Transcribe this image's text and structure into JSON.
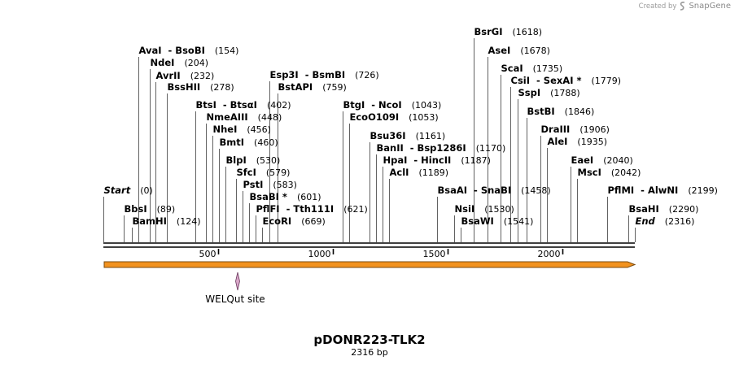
{
  "credit": {
    "prefix": "Created by",
    "brand": "SnapGene",
    "icon": "snapgene-logo-icon"
  },
  "map": {
    "name": "pDONR223-TLK2",
    "length_label": "2316 bp",
    "length": 2316,
    "ticks": [
      500,
      1000,
      1500,
      2000
    ],
    "sites": [
      {
        "label": "Start",
        "pos": "(0)",
        "coord": 0,
        "terminal": true
      },
      {
        "label": "BbsI",
        "pos": "(89)",
        "coord": 89
      },
      {
        "label": "BamHI",
        "pos": "(124)",
        "coord": 124
      },
      {
        "label": "AvaI  - BsoBI",
        "pos": "(154)",
        "coord": 154
      },
      {
        "label": "NdeI",
        "pos": "(204)",
        "coord": 204
      },
      {
        "label": "AvrII",
        "pos": "(232)",
        "coord": 232
      },
      {
        "label": "BssHII",
        "pos": "(278)",
        "coord": 278
      },
      {
        "label": "BtsI  - BtsαI",
        "pos": "(402)",
        "coord": 402
      },
      {
        "label": "NmeAIII",
        "pos": "(448)",
        "coord": 448
      },
      {
        "label": "NheI",
        "pos": "(456)",
        "coord": 456
      },
      {
        "label": "BmtI",
        "pos": "(460)",
        "coord": 460
      },
      {
        "label": "BlpI",
        "pos": "(530)",
        "coord": 530
      },
      {
        "label": "SfcI",
        "pos": "(579)",
        "coord": 579
      },
      {
        "label": "PstI",
        "pos": "(583)",
        "coord": 583
      },
      {
        "label": "BsaBI *",
        "pos": "(601)",
        "coord": 601
      },
      {
        "label": "PflFI  - Tth111I",
        "pos": "(621)",
        "coord": 621
      },
      {
        "label": "EcoRI",
        "pos": "(669)",
        "coord": 669
      },
      {
        "label": "Esp3I  - BsmBI",
        "pos": "(726)",
        "coord": 726
      },
      {
        "label": "BstAPI",
        "pos": "(759)",
        "coord": 759
      },
      {
        "label": "BtgI  - NcoI",
        "pos": "(1043)",
        "coord": 1043
      },
      {
        "label": "EcoO109I",
        "pos": "(1053)",
        "coord": 1053
      },
      {
        "label": "Bsu36I",
        "pos": "(1161)",
        "coord": 1161
      },
      {
        "label": "BanII  - Bsp1286I",
        "pos": "(1170)",
        "coord": 1170
      },
      {
        "label": "HpaI  - HincII",
        "pos": "(1187)",
        "coord": 1187
      },
      {
        "label": "AclI",
        "pos": "(1189)",
        "coord": 1189
      },
      {
        "label": "BsaAI  - SnaBI",
        "pos": "(1458)",
        "coord": 1458
      },
      {
        "label": "NsiI",
        "pos": "(1530)",
        "coord": 1530
      },
      {
        "label": "BsaWI",
        "pos": "(1541)",
        "coord": 1541
      },
      {
        "label": "BsrGI",
        "pos": "(1618)",
        "coord": 1618
      },
      {
        "label": "AseI",
        "pos": "(1678)",
        "coord": 1678
      },
      {
        "label": "ScaI",
        "pos": "(1735)",
        "coord": 1735
      },
      {
        "label": "CsiI  - SexAI *",
        "pos": "(1779)",
        "coord": 1779
      },
      {
        "label": "SspI",
        "pos": "(1788)",
        "coord": 1788
      },
      {
        "label": "BstBI",
        "pos": "(1846)",
        "coord": 1846
      },
      {
        "label": "DraIII",
        "pos": "(1906)",
        "coord": 1906
      },
      {
        "label": "AleI",
        "pos": "(1935)",
        "coord": 1935
      },
      {
        "label": "EaeI",
        "pos": "(2040)",
        "coord": 2040
      },
      {
        "label": "MscI",
        "pos": "(2042)",
        "coord": 2042
      },
      {
        "label": "PflMI  - AlwNI",
        "pos": "(2199)",
        "coord": 2199
      },
      {
        "label": "BsaHI",
        "pos": "(2290)",
        "coord": 2290
      },
      {
        "label": "End",
        "pos": "(2316)",
        "coord": 2316,
        "terminal": true
      }
    ],
    "features": [
      {
        "label": "WELQut site",
        "coord": 590
      }
    ],
    "colors": {
      "arrow_fill": "#f2921e",
      "arrow_stroke": "#7a4a0d",
      "feature_fill": "#d9a7c9",
      "feature_stroke": "#6b3a5e"
    }
  }
}
